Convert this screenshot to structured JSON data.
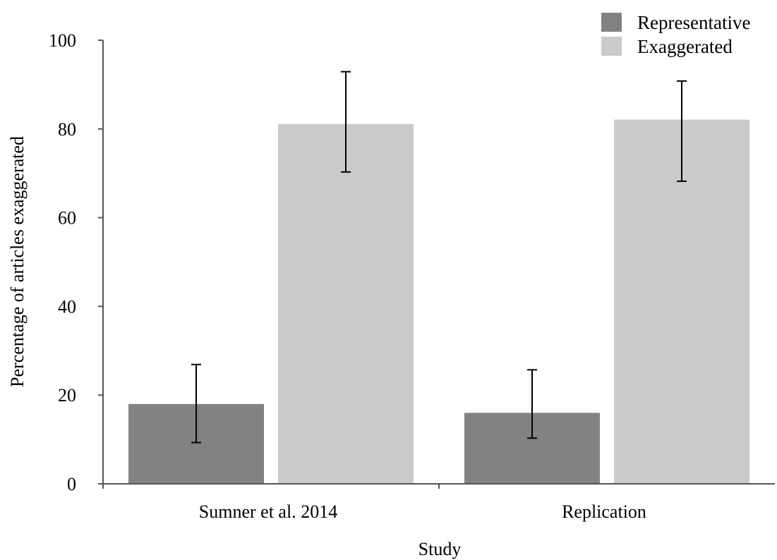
{
  "chart_data": {
    "type": "bar",
    "title": "",
    "xlabel": "Study",
    "ylabel": "Percentage of articles exaggerated",
    "categories": [
      "Sumner et al. 2014",
      "Replication"
    ],
    "ylim": [
      0,
      100
    ],
    "yticks": [
      0,
      20,
      40,
      60,
      80,
      100
    ],
    "grid": false,
    "legend_position": "top-right",
    "series": [
      {
        "name": "Representative",
        "color": "#828282",
        "values": [
          18,
          16
        ],
        "error_low": [
          9.3,
          10.3
        ],
        "error_high": [
          26.9,
          25.7
        ]
      },
      {
        "name": "Exaggerated",
        "color": "#c9cbc9",
        "values": [
          81.1,
          82.1
        ],
        "error_low": [
          70.3,
          68.2
        ],
        "error_high": [
          92.9,
          90.8
        ]
      }
    ]
  }
}
